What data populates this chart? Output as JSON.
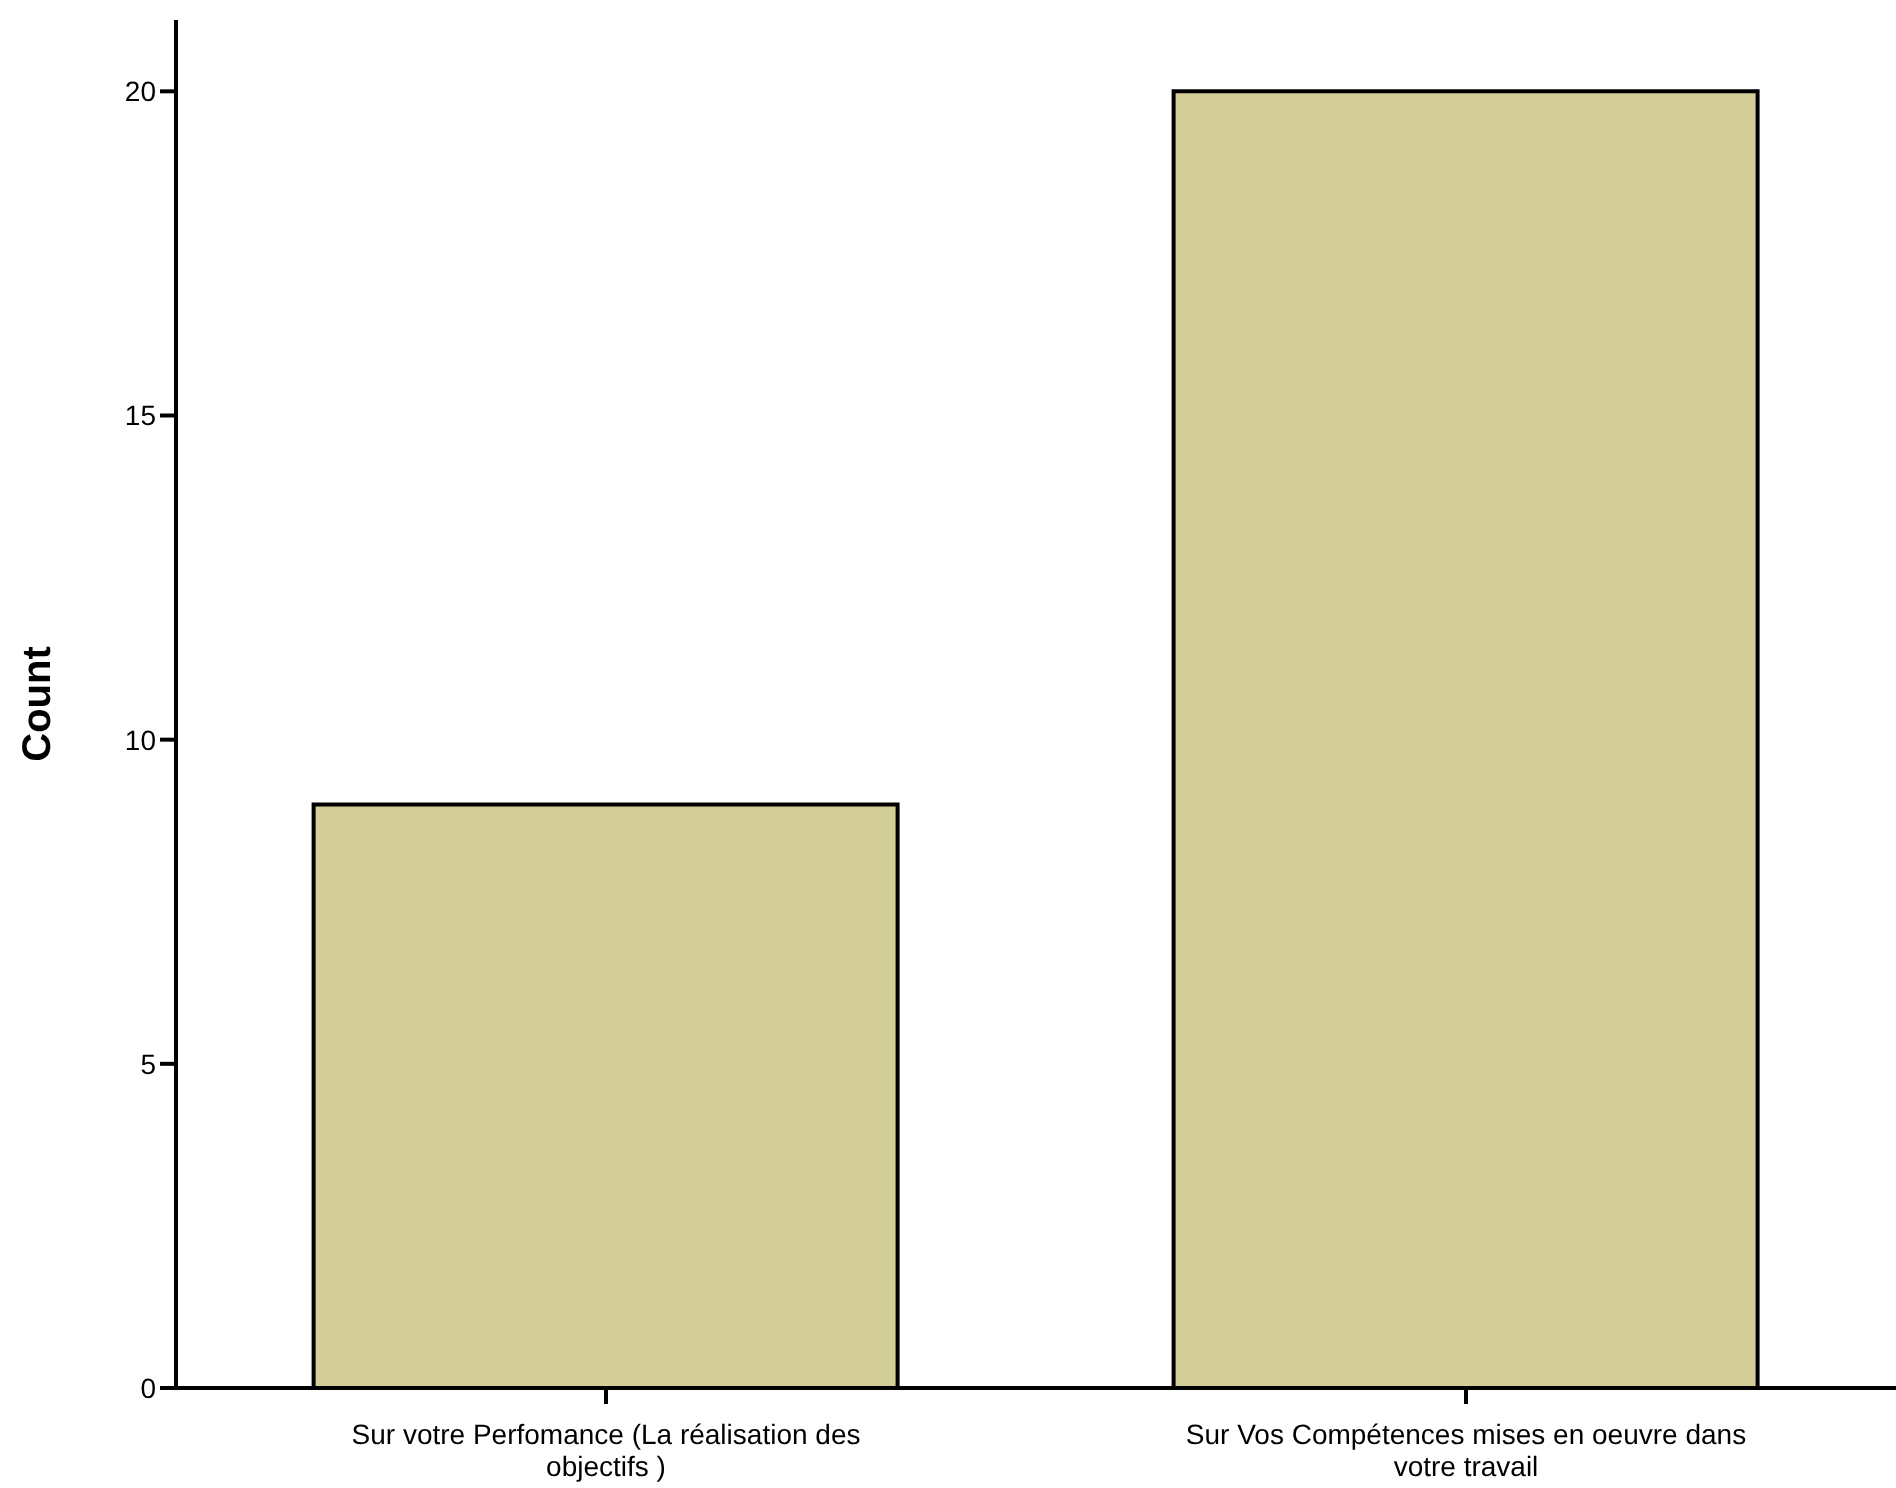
{
  "chart_data": {
    "type": "bar",
    "ylabel": "Count",
    "categories": [
      "Sur votre Perfomance (La réalisation des objectifs )",
      "Sur Vos Compétences mises en oeuvre dans votre travail"
    ],
    "values": [
      9,
      20
    ],
    "color": "#d3cd98",
    "ylim": [
      0,
      21.1
    ],
    "yticks": [
      0,
      5,
      10,
      15,
      20
    ],
    "grid": false
  }
}
